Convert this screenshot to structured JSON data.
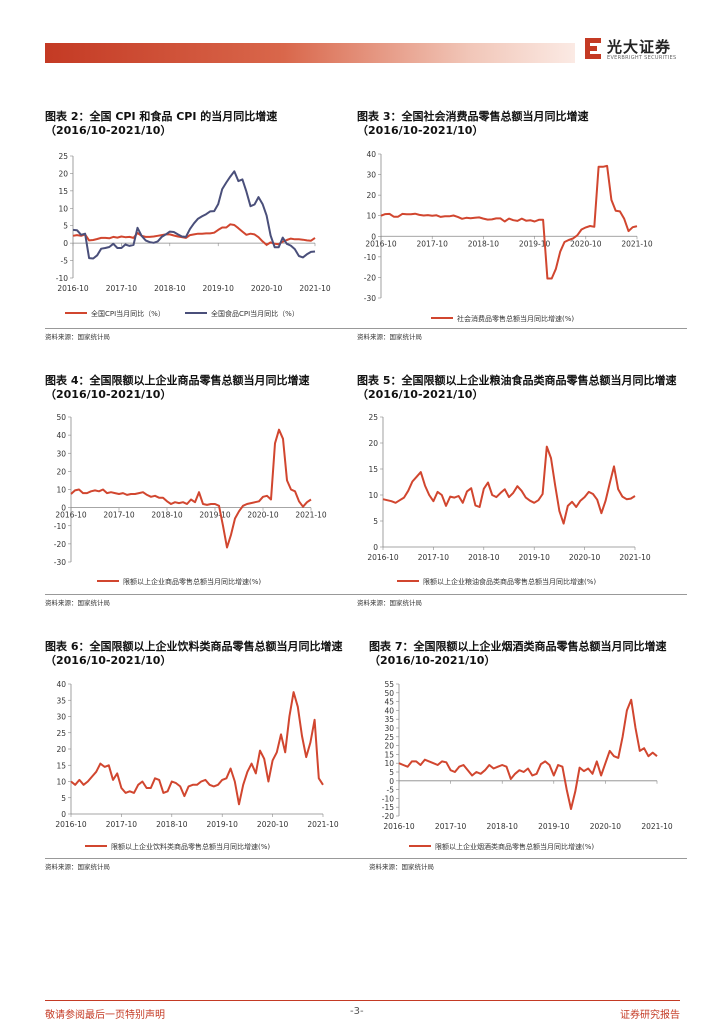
{
  "header": {
    "logo_cn": "光大证券",
    "logo_en": "EVERBRIGHT SECURITIES",
    "brand_color": "#c43a24"
  },
  "footer": {
    "left": "敬请参阅最后一页特别声明",
    "page": "-3-",
    "right": "证券研究报告"
  },
  "source_text": "资料来源：国家统计局",
  "colors": {
    "red": "#d1462f",
    "navy": "#4a4f7a"
  },
  "chart_data": [
    {
      "id": "fig2",
      "type": "line",
      "title": "图表 2：全国 CPI 和食品 CPI 的当月同比增速",
      "subtitle": "（2016/10-2021/10）",
      "x_start": "2016-10",
      "x_end": "2021-10",
      "xticks": [
        "2016-10",
        "2017-10",
        "2018-10",
        "2019-10",
        "2020-10",
        "2021-10"
      ],
      "ylim": [
        -10,
        25
      ],
      "yticks": [
        -10,
        -5,
        0,
        5,
        10,
        15,
        20,
        25
      ],
      "series": [
        {
          "name": "全国CPI当月同比（%）",
          "color": "#d1462f",
          "values": [
            2.1,
            2.3,
            2.1,
            2.5,
            0.8,
            0.9,
            1.2,
            1.5,
            1.5,
            1.4,
            1.8,
            1.6,
            1.9,
            1.7,
            1.8,
            1.5,
            2.9,
            2.1,
            1.8,
            1.8,
            1.9,
            2.1,
            2.3,
            2.5,
            2.5,
            2.2,
            1.9,
            1.7,
            1.5,
            2.3,
            2.5,
            2.7,
            2.7,
            2.8,
            2.8,
            3.0,
            3.8,
            4.5,
            4.5,
            5.4,
            5.2,
            4.3,
            3.3,
            2.4,
            2.7,
            2.5,
            1.7,
            0.5,
            -0.5,
            0.2,
            -0.2,
            -0.3,
            0.4,
            0.9,
            1.3,
            1.1,
            1.1,
            1.0,
            0.8,
            0.7,
            1.5
          ]
        },
        {
          "name": "全国食品CPI当月同比（%）",
          "color": "#4a4f7a",
          "values": [
            3.8,
            3.7,
            2.4,
            2.7,
            -4.3,
            -4.4,
            -3.5,
            -1.6,
            -1.4,
            -1.1,
            -0.2,
            -1.4,
            -1.4,
            -0.4,
            -0.8,
            -0.5,
            4.4,
            2.1,
            0.8,
            0.3,
            0.1,
            0.5,
            1.8,
            2.5,
            3.3,
            3.2,
            2.5,
            1.9,
            1.8,
            4.1,
            5.7,
            7.0,
            7.7,
            8.3,
            9.1,
            9.2,
            11.2,
            15.5,
            17.4,
            19.1,
            20.6,
            17.8,
            18.3,
            14.8,
            10.6,
            11.1,
            13.2,
            11.2,
            7.9,
            2.2,
            -1.2,
            -1.2,
            1.6,
            -0.2,
            -0.7,
            -1.7,
            -3.7,
            -4.1,
            -3.2,
            -2.5,
            -2.4
          ]
        }
      ]
    },
    {
      "id": "fig3",
      "type": "line",
      "title": "图表 3：全国社会消费品零售总额当月同比增速",
      "subtitle": "（2016/10-2021/10）",
      "xticks": [
        "2016-10",
        "2017-10",
        "2018-10",
        "2019-10",
        "2020-10",
        "2021-10"
      ],
      "ylim": [
        -30,
        40
      ],
      "yticks": [
        -30,
        -20,
        -10,
        0,
        10,
        20,
        30,
        40
      ],
      "series": [
        {
          "name": "社会消费品零售总额当月同比增速(%)",
          "color": "#d1462f",
          "values": [
            10.0,
            10.8,
            10.9,
            9.5,
            9.5,
            10.9,
            10.7,
            10.7,
            11.0,
            10.4,
            10.1,
            10.3,
            10.0,
            10.2,
            9.4,
            9.7,
            9.7,
            10.1,
            9.4,
            8.5,
            9.0,
            8.8,
            9.0,
            9.2,
            8.6,
            8.1,
            8.2,
            8.7,
            8.7,
            7.2,
            8.6,
            7.8,
            7.5,
            8.6,
            7.6,
            7.8,
            7.2,
            8.0,
            8.0,
            -20.5,
            -20.5,
            -15.8,
            -7.5,
            -2.8,
            -1.8,
            -1.1,
            0.5,
            3.3,
            4.3,
            5.0,
            4.6,
            33.8,
            33.8,
            34.2,
            17.7,
            12.4,
            12.1,
            8.5,
            2.5,
            4.4,
            4.9
          ]
        }
      ]
    },
    {
      "id": "fig4",
      "type": "line",
      "title": "图表 4：全国限额以上企业商品零售总额当月同比增速",
      "subtitle": "（2016/10-2021/10）",
      "xticks": [
        "2016-10",
        "2017-10",
        "2018-10",
        "2019-10",
        "2020-10",
        "2021-10"
      ],
      "ylim": [
        -30,
        50
      ],
      "yticks": [
        -30,
        -20,
        -10,
        0,
        10,
        20,
        30,
        40,
        50
      ],
      "series": [
        {
          "name": "限额以上企业商品零售总额当月同比增速(%)",
          "color": "#d1462f",
          "values": [
            7.5,
            9.5,
            10.0,
            8.0,
            8.0,
            9.0,
            9.5,
            9.0,
            10.0,
            8.0,
            8.5,
            8.0,
            7.5,
            8.0,
            7.0,
            7.5,
            7.5,
            8.0,
            8.5,
            7.0,
            6.0,
            6.5,
            5.5,
            5.5,
            3.5,
            2.0,
            3.0,
            2.5,
            3.0,
            2.0,
            4.5,
            3.0,
            8.5,
            2.0,
            1.5,
            2.0,
            2.0,
            1.0,
            -10.0,
            -22.0,
            -15.0,
            -6.0,
            -2.0,
            1.0,
            2.0,
            2.5,
            3.0,
            3.5,
            6.0,
            6.5,
            4.5,
            35.5,
            43.0,
            38.0,
            15.0,
            10.0,
            9.0,
            3.5,
            0.5,
            3.0,
            4.5
          ]
        }
      ]
    },
    {
      "id": "fig5",
      "type": "line",
      "title": "图表 5：全国限额以上企业粮油食品类商品零售总额当月同比增速",
      "subtitle": "（2016/10-2021/10）",
      "xticks": [
        "2016-10",
        "2017-10",
        "2018-10",
        "2019-10",
        "2020-10",
        "2021-10"
      ],
      "ylim": [
        0,
        25
      ],
      "yticks": [
        0,
        5,
        10,
        15,
        20,
        25
      ],
      "series": [
        {
          "name": "限额以上企业粮油食品类商品零售总额当月同比增速(%)",
          "color": "#d1462f",
          "values": [
            9.2,
            9.0,
            8.8,
            8.5,
            9.0,
            9.5,
            10.8,
            12.6,
            13.5,
            14.4,
            11.8,
            10.0,
            8.8,
            10.6,
            10.0,
            7.9,
            9.7,
            9.5,
            9.8,
            8.5,
            10.7,
            11.3,
            8.0,
            7.7,
            11.2,
            12.4,
            10.0,
            9.6,
            10.4,
            11.1,
            9.6,
            10.4,
            11.7,
            10.8,
            9.5,
            8.9,
            8.5,
            9.0,
            10.2,
            19.3,
            17.1,
            11.8,
            6.9,
            4.5,
            7.9,
            8.7,
            7.7,
            8.9,
            9.6,
            10.6,
            10.2,
            9.1,
            6.5,
            8.9,
            12.3,
            15.5,
            11.1,
            9.7,
            9.2,
            9.3,
            9.8
          ]
        }
      ]
    },
    {
      "id": "fig6",
      "type": "line",
      "title": "图表 6：全国限额以上企业饮料类商品零售总额当月同比增速",
      "subtitle": "（2016/10-2021/10）",
      "xticks": [
        "2016-10",
        "2017-10",
        "2018-10",
        "2019-10",
        "2020-10",
        "2021-10"
      ],
      "ylim": [
        0,
        40
      ],
      "yticks": [
        0,
        5,
        10,
        15,
        20,
        25,
        30,
        35,
        40
      ],
      "series": [
        {
          "name": "限额以上企业饮料类商品零售总额当月同比增速(%)",
          "color": "#d1462f",
          "values": [
            10.0,
            9.0,
            10.5,
            9.0,
            10.0,
            11.5,
            13.0,
            15.5,
            14.5,
            15.0,
            10.5,
            12.5,
            8.0,
            6.5,
            7.0,
            6.5,
            9.0,
            10.0,
            8.0,
            8.0,
            11.0,
            10.5,
            6.5,
            7.0,
            10.0,
            9.5,
            8.5,
            5.5,
            8.5,
            9.0,
            9.0,
            10.0,
            10.5,
            9.0,
            8.5,
            9.0,
            10.5,
            11.0,
            14.0,
            10.0,
            3.0,
            9.0,
            13.0,
            15.5,
            12.5,
            19.5,
            17.0,
            10.0,
            16.5,
            19.0,
            24.5,
            19.0,
            30.0,
            37.5,
            33.0,
            24.0,
            17.5,
            22.0,
            29.0,
            11.0,
            9.0
          ]
        }
      ]
    },
    {
      "id": "fig7",
      "type": "line",
      "title": "图表 7：全国限额以上企业烟酒类商品零售总额当月同比增速",
      "subtitle": "（2016/10-2021/10）",
      "xticks": [
        "2016-10",
        "2017-10",
        "2018-10",
        "2019-10",
        "2020-10",
        "2021-10"
      ],
      "ylim": [
        -20,
        55
      ],
      "yticks": [
        -20,
        -15,
        -10,
        -5,
        0,
        5,
        10,
        15,
        20,
        25,
        30,
        35,
        40,
        45,
        50,
        55
      ],
      "series": [
        {
          "name": "限额以上企业烟酒类商品零售总额当月同比增速(%)",
          "color": "#d1462f",
          "values": [
            10.0,
            9.0,
            8.0,
            11.0,
            11.0,
            9.0,
            12.0,
            11.0,
            10.0,
            9.0,
            11.0,
            10.5,
            6.0,
            5.0,
            8.0,
            9.0,
            6.0,
            3.0,
            5.0,
            4.0,
            6.0,
            9.0,
            7.0,
            8.0,
            9.0,
            8.0,
            1.0,
            4.0,
            6.0,
            5.0,
            7.0,
            3.0,
            4.0,
            9.5,
            11.0,
            9.0,
            3.0,
            9.0,
            8.0,
            -5.0,
            -16.0,
            -6.0,
            7.5,
            5.5,
            7.0,
            4.0,
            11.0,
            3.0,
            10.0,
            17.0,
            14.0,
            13.0,
            25.0,
            40.0,
            46.0,
            30.0,
            17.0,
            18.5,
            14.0,
            16.0,
            14.0
          ]
        }
      ]
    }
  ]
}
